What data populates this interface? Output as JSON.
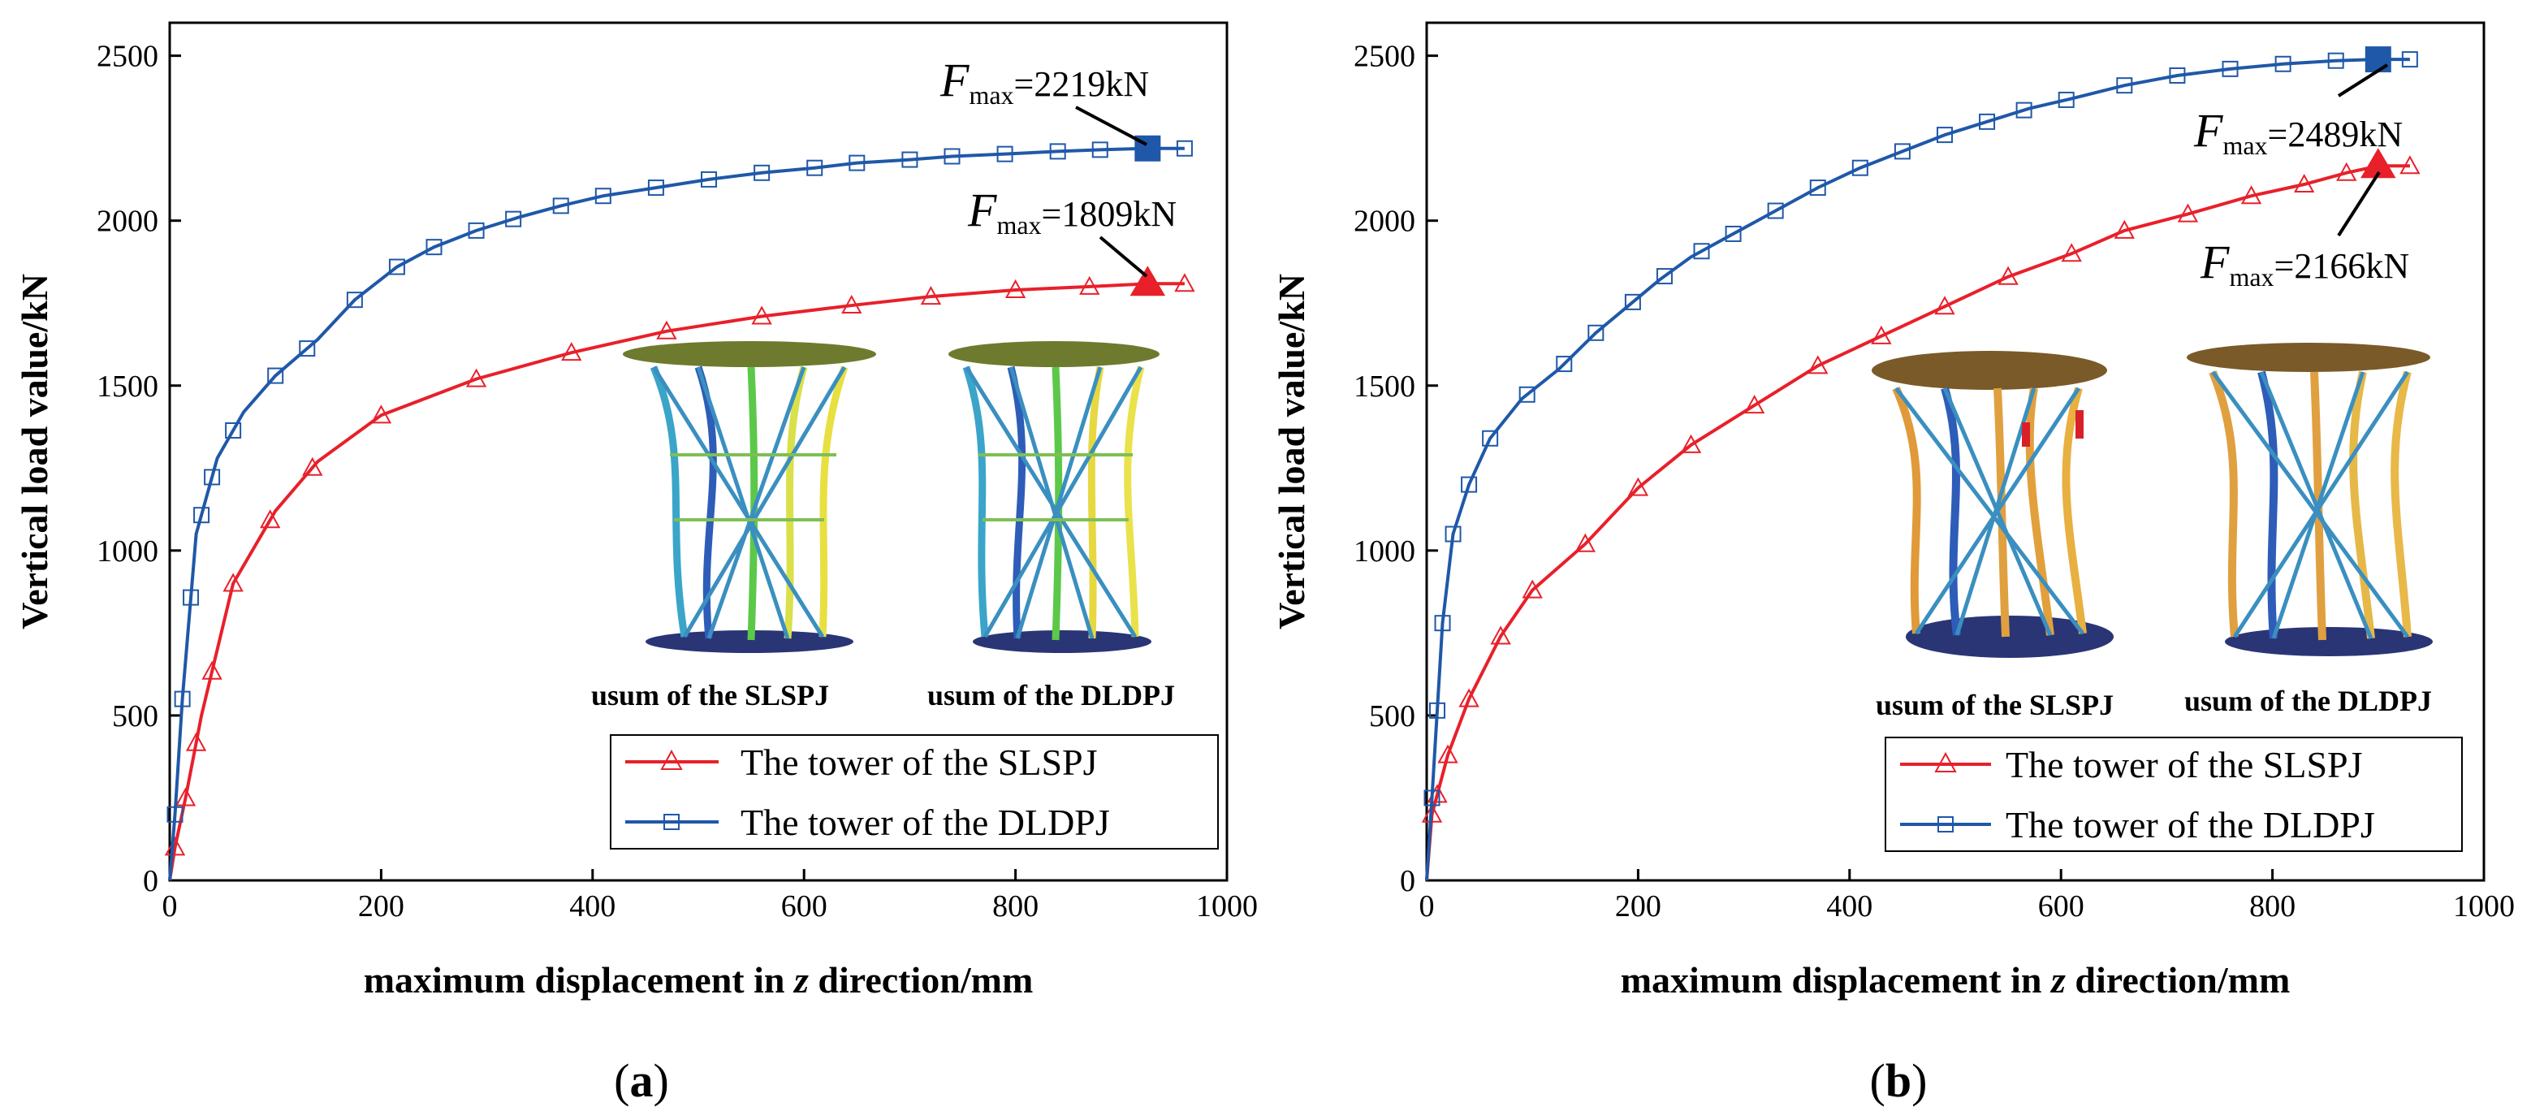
{
  "chart_data": [
    {
      "type": "line",
      "panel_label": "(a)",
      "panel_letter": "a",
      "xlabel_parts": [
        "maximum displacement in ",
        "z",
        " direction/mm"
      ],
      "ylabel": "Vertical load value/kN",
      "xlim": [
        0,
        1000
      ],
      "ylim": [
        0,
        2600
      ],
      "xticks": [
        0,
        200,
        400,
        600,
        800,
        1000
      ],
      "yticks": [
        0,
        500,
        1000,
        1500,
        2000,
        2500
      ],
      "legend": {
        "position": "bottom-right"
      },
      "series": [
        {
          "name": "The tower of  the SLSPJ",
          "color": "#e8202a",
          "marker": "triangle",
          "x": [
            0,
            5,
            15,
            30,
            60,
            100,
            140,
            200,
            290,
            380,
            470,
            560,
            650,
            720,
            800,
            870,
            925,
            960
          ],
          "y": [
            0,
            100,
            250,
            500,
            900,
            1120,
            1270,
            1410,
            1520,
            1600,
            1665,
            1710,
            1745,
            1770,
            1790,
            1800,
            1809,
            1809
          ],
          "markers_x": [
            5,
            15,
            25,
            40,
            60,
            95,
            135,
            200,
            290,
            380,
            470,
            560,
            645,
            720,
            800,
            870,
            960
          ],
          "peak": {
            "x": 925,
            "y": 1809,
            "label_main": "F",
            "label_sub": "max",
            "label_rest": "=1809kN"
          }
        },
        {
          "name": "The tower of  the DLDPJ",
          "color": "#1f58a8",
          "marker": "square",
          "x": [
            0,
            5,
            12,
            25,
            45,
            70,
            100,
            140,
            175,
            215,
            250,
            290,
            330,
            370,
            410,
            460,
            510,
            560,
            610,
            650,
            700,
            740,
            790,
            840,
            880,
            925,
            960
          ],
          "y": [
            0,
            200,
            550,
            1050,
            1280,
            1420,
            1530,
            1640,
            1760,
            1860,
            1920,
            1970,
            2010,
            2045,
            2075,
            2100,
            2125,
            2145,
            2160,
            2175,
            2185,
            2195,
            2202,
            2210,
            2215,
            2219,
            2219
          ],
          "markers_x": [
            5,
            12,
            20,
            30,
            40,
            60,
            100,
            130,
            175,
            215,
            250,
            290,
            325,
            370,
            410,
            460,
            510,
            560,
            610,
            650,
            700,
            740,
            790,
            840,
            880,
            960
          ],
          "peak": {
            "x": 925,
            "y": 2219,
            "label_main": "F",
            "label_sub": "max",
            "label_rest": "=2219kN"
          }
        }
      ],
      "inset_captions": [
        "usum of the SLSPJ",
        "usum of the DLDPJ"
      ]
    },
    {
      "type": "line",
      "panel_label": "(b)",
      "panel_letter": "b",
      "xlabel_parts": [
        "maximum displacement in ",
        "z",
        " direction/mm"
      ],
      "ylabel": "Vertical load value/kN",
      "xlim": [
        0,
        1000
      ],
      "ylim": [
        0,
        2600
      ],
      "xticks": [
        0,
        200,
        400,
        600,
        800,
        1000
      ],
      "yticks": [
        0,
        500,
        1000,
        1500,
        2000,
        2500
      ],
      "legend": {
        "position": "bottom-right"
      },
      "series": [
        {
          "name": "The tower of  the SLSPJ",
          "color": "#e8202a",
          "marker": "triangle",
          "x": [
            0,
            5,
            20,
            40,
            70,
            100,
            150,
            200,
            250,
            310,
            370,
            430,
            490,
            550,
            610,
            660,
            720,
            780,
            830,
            870,
            900,
            930
          ],
          "y": [
            0,
            200,
            380,
            550,
            740,
            880,
            1020,
            1190,
            1320,
            1440,
            1560,
            1650,
            1740,
            1830,
            1900,
            1970,
            2020,
            2075,
            2110,
            2145,
            2166,
            2166
          ],
          "markers_x": [
            5,
            10,
            20,
            40,
            70,
            100,
            150,
            200,
            250,
            310,
            370,
            430,
            490,
            550,
            610,
            660,
            720,
            780,
            830,
            870,
            930
          ],
          "peak": {
            "x": 900,
            "y": 2166,
            "label_main": "F",
            "label_sub": "max",
            "label_rest": "=2166kN"
          }
        },
        {
          "name": "The tower of  the DLDPJ",
          "color": "#1f58a8",
          "marker": "square",
          "x": [
            0,
            5,
            15,
            25,
            40,
            60,
            90,
            125,
            160,
            190,
            220,
            250,
            290,
            330,
            370,
            410,
            450,
            490,
            530,
            570,
            610,
            660,
            710,
            760,
            810,
            860,
            900,
            930
          ],
          "y": [
            0,
            250,
            780,
            1050,
            1200,
            1340,
            1460,
            1550,
            1660,
            1740,
            1820,
            1890,
            1960,
            2030,
            2100,
            2160,
            2210,
            2260,
            2300,
            2340,
            2370,
            2410,
            2440,
            2460,
            2475,
            2485,
            2489,
            2489
          ],
          "markers_x": [
            5,
            10,
            15,
            25,
            40,
            60,
            95,
            130,
            160,
            195,
            225,
            260,
            290,
            330,
            370,
            410,
            450,
            490,
            530,
            565,
            605,
            660,
            710,
            760,
            810,
            860,
            930
          ],
          "peak": {
            "x": 900,
            "y": 2489,
            "label_main": "F",
            "label_sub": "max",
            "label_rest": "=2489kN"
          }
        }
      ],
      "inset_captions": [
        "usum of the SLSPJ",
        "usum of the DLDPJ"
      ]
    }
  ]
}
